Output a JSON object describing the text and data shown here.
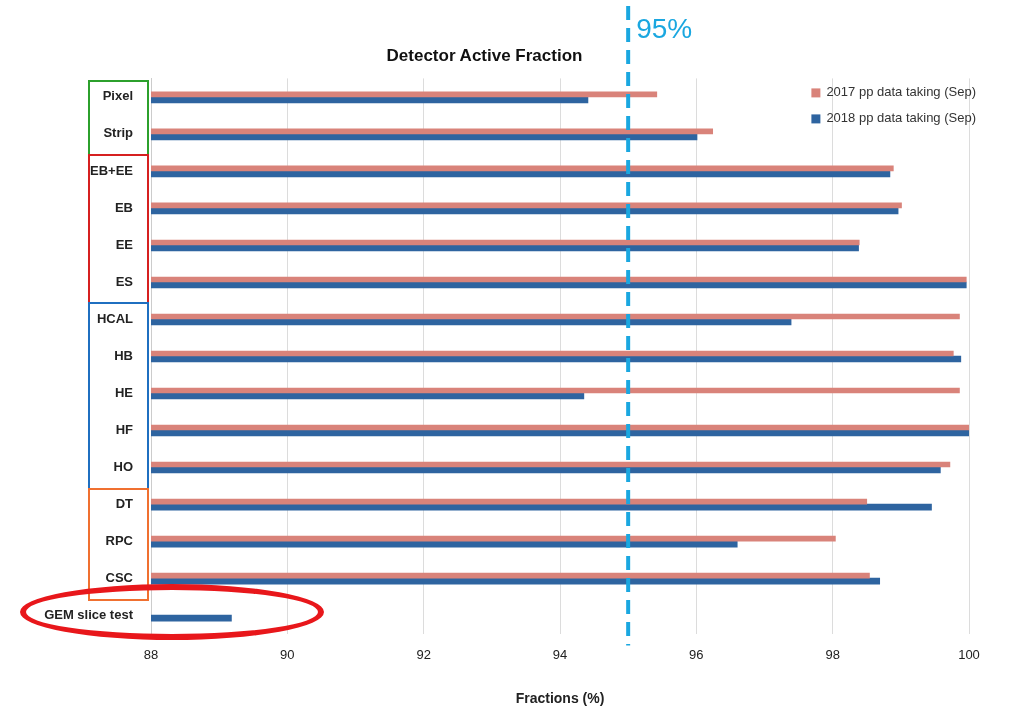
{
  "chart_data": {
    "type": "bar",
    "orientation": "horizontal",
    "title": "Detector Active Fraction",
    "xlabel": "Fractions (%)",
    "categories": [
      "Pixel",
      "Strip",
      "EB+EE",
      "EB",
      "EE",
      "ES",
      "HCAL",
      "HB",
      "HE",
      "HF",
      "HO",
      "DT",
      "RPC",
      "CSC",
      "GEM slice test"
    ],
    "series": [
      {
        "name": "2017 pp data taking (Sep)",
        "color": "#d9837a",
        "values": [
          95.42,
          96.24,
          98.89,
          99.01,
          98.39,
          99.96,
          99.86,
          99.77,
          99.86,
          100,
          99.72,
          98.5,
          98.04,
          98.54,
          null
        ]
      },
      {
        "name": "2018 pp data taking (Sep)",
        "color": "#2e64a0",
        "values": [
          94.41,
          96.01,
          98.84,
          98.96,
          98.38,
          99.96,
          97.39,
          99.88,
          94.35,
          100,
          99.58,
          99.45,
          96.6,
          98.69,
          89.18
        ]
      }
    ],
    "xlim": [
      88,
      100
    ],
    "xticks": [
      88,
      90,
      92,
      94,
      96,
      98,
      100
    ],
    "ref_lines": [
      {
        "axis": "x",
        "value": 95,
        "label": "95%",
        "color": "#1aa7e0",
        "line_style": "dashed"
      }
    ],
    "grid": "x",
    "legend": "top right"
  }
}
